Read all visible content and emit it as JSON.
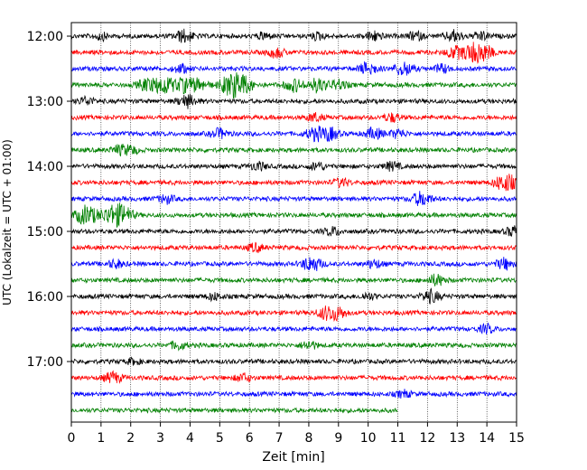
{
  "chart_data": {
    "type": "line",
    "title": "",
    "xlabel": "Zeit  [min]",
    "ylabel": "UTC (Lokalzeit = UTC + 01:00)",
    "xlim": [
      0,
      15
    ],
    "x_ticks": [
      0,
      1,
      2,
      3,
      4,
      5,
      6,
      7,
      8,
      9,
      10,
      11,
      12,
      13,
      14,
      15
    ],
    "grid": "vertical dotted at each minute",
    "y_tick_labels": [
      "12:00",
      "13:00",
      "14:00",
      "15:00",
      "16:00",
      "17:00"
    ],
    "traces_per_hour": 4,
    "trace_interval_min": 15,
    "colors_cycle": [
      "#000000",
      "#ff0000",
      "#0000ff",
      "#008000"
    ],
    "series": [
      {
        "start": "12:00",
        "color": "#000000",
        "end_min": 15,
        "events": [
          [
            1.0,
            0.5
          ],
          [
            3.8,
            0.9
          ],
          [
            6.5,
            0.5
          ],
          [
            8.3,
            0.5
          ],
          [
            10.2,
            0.7
          ],
          [
            11.6,
            0.6
          ],
          [
            12.9,
            0.8
          ],
          [
            13.8,
            0.6
          ]
        ]
      },
      {
        "start": "12:15",
        "color": "#ff0000",
        "end_min": 15,
        "events": [
          [
            6.9,
            0.7
          ],
          [
            12.9,
            0.8
          ],
          [
            13.5,
            1.2
          ],
          [
            13.9,
            1.0
          ]
        ]
      },
      {
        "start": "12:30",
        "color": "#0000ff",
        "end_min": 15,
        "events": [
          [
            3.7,
            0.6
          ],
          [
            10.0,
            0.9
          ],
          [
            11.2,
            1.0
          ],
          [
            12.5,
            0.6
          ]
        ]
      },
      {
        "start": "12:45",
        "color": "#008000",
        "end_min": 15,
        "events": [
          [
            2.5,
            0.8
          ],
          [
            3.1,
            1.3
          ],
          [
            3.8,
            1.0
          ],
          [
            4.3,
            0.8
          ],
          [
            5.3,
            1.1
          ],
          [
            5.7,
            1.5
          ],
          [
            7.5,
            0.9
          ],
          [
            8.3,
            1.0
          ],
          [
            9.0,
            0.7
          ]
        ]
      },
      {
        "start": "13:00",
        "color": "#000000",
        "end_min": 15,
        "events": [
          [
            0.5,
            0.6
          ],
          [
            3.9,
            0.9
          ]
        ]
      },
      {
        "start": "13:15",
        "color": "#ff0000",
        "end_min": 15,
        "events": [
          [
            8.2,
            0.6
          ],
          [
            10.8,
            0.6
          ]
        ]
      },
      {
        "start": "13:30",
        "color": "#0000ff",
        "end_min": 15,
        "events": [
          [
            5.0,
            0.7
          ],
          [
            8.2,
            0.9
          ],
          [
            8.7,
            0.9
          ],
          [
            10.2,
            0.8
          ],
          [
            11.0,
            0.6
          ]
        ]
      },
      {
        "start": "13:45",
        "color": "#008000",
        "end_min": 15,
        "events": [
          [
            1.6,
            0.6
          ],
          [
            2.0,
            0.6
          ]
        ]
      },
      {
        "start": "14:00",
        "color": "#000000",
        "end_min": 15,
        "events": [
          [
            6.3,
            0.6
          ],
          [
            8.3,
            0.6
          ],
          [
            10.8,
            0.6
          ]
        ]
      },
      {
        "start": "14:15",
        "color": "#ff0000",
        "end_min": 15,
        "events": [
          [
            9.1,
            0.6
          ],
          [
            14.5,
            0.9
          ],
          [
            14.8,
            0.7
          ]
        ]
      },
      {
        "start": "14:30",
        "color": "#0000ff",
        "end_min": 15,
        "events": [
          [
            3.2,
            0.6
          ],
          [
            11.8,
            1.0
          ]
        ]
      },
      {
        "start": "14:45",
        "color": "#008000",
        "end_min": 15,
        "events": [
          [
            0.5,
            1.4
          ],
          [
            1.4,
            1.4
          ],
          [
            1.8,
            0.9
          ]
        ]
      },
      {
        "start": "15:00",
        "color": "#000000",
        "end_min": 15,
        "events": [
          [
            8.8,
            0.6
          ],
          [
            14.9,
            0.7
          ]
        ]
      },
      {
        "start": "15:15",
        "color": "#ff0000",
        "end_min": 15,
        "events": [
          [
            6.2,
            0.6
          ]
        ]
      },
      {
        "start": "15:30",
        "color": "#0000ff",
        "end_min": 15,
        "events": [
          [
            1.5,
            0.6
          ],
          [
            8.1,
            1.1
          ],
          [
            10.2,
            0.6
          ],
          [
            14.6,
            0.8
          ]
        ]
      },
      {
        "start": "15:45",
        "color": "#008000",
        "end_min": 15,
        "events": [
          [
            12.3,
            0.8
          ]
        ]
      },
      {
        "start": "16:00",
        "color": "#000000",
        "end_min": 15,
        "events": [
          [
            4.8,
            0.5
          ],
          [
            10.0,
            0.5
          ],
          [
            12.1,
            0.9
          ]
        ]
      },
      {
        "start": "16:15",
        "color": "#ff0000",
        "end_min": 15,
        "events": [
          [
            8.6,
            0.9
          ],
          [
            9.0,
            0.8
          ]
        ]
      },
      {
        "start": "16:30",
        "color": "#0000ff",
        "end_min": 15,
        "events": [
          [
            14.0,
            0.6
          ]
        ]
      },
      {
        "start": "16:45",
        "color": "#008000",
        "end_min": 15,
        "events": [
          [
            3.6,
            0.6
          ],
          [
            8.0,
            0.6
          ]
        ]
      },
      {
        "start": "17:00",
        "color": "#000000",
        "end_min": 15,
        "events": [
          [
            2.1,
            0.4
          ]
        ]
      },
      {
        "start": "17:15",
        "color": "#ff0000",
        "end_min": 15,
        "events": [
          [
            1.4,
            0.8
          ],
          [
            5.8,
            0.6
          ]
        ]
      },
      {
        "start": "17:30",
        "color": "#0000ff",
        "end_min": 15,
        "events": [
          [
            11.2,
            0.5
          ]
        ]
      },
      {
        "start": "17:45",
        "color": "#008000",
        "end_min": 11.0,
        "events": []
      }
    ]
  }
}
